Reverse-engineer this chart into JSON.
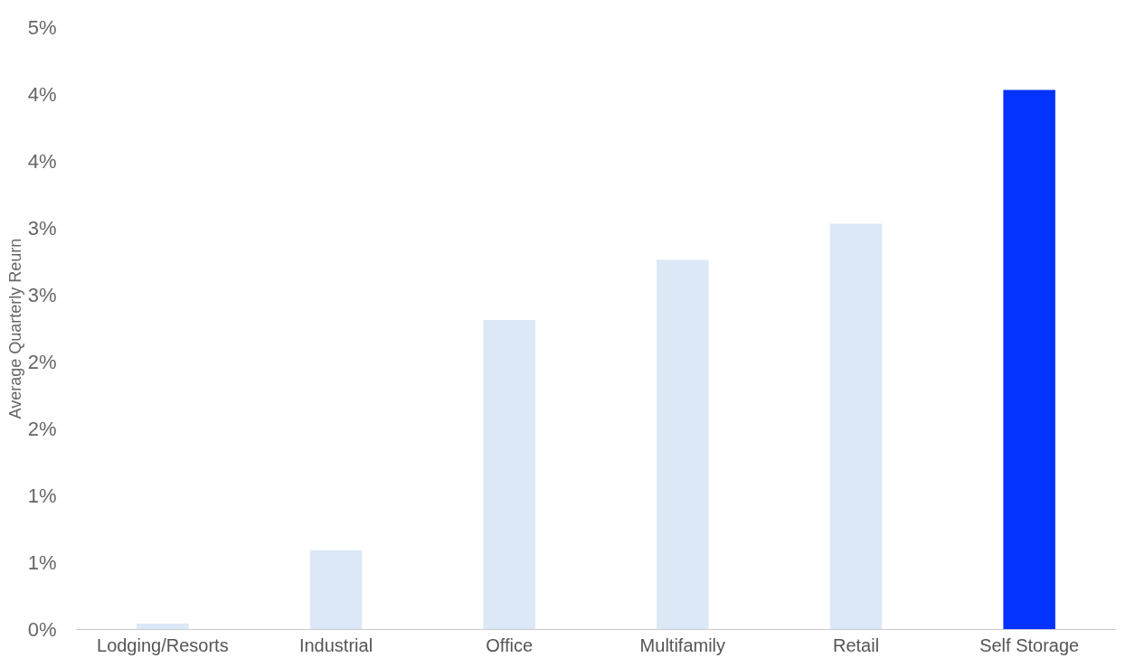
{
  "chart_data": {
    "type": "bar",
    "ylabel": "Average Quarterly Reurn",
    "categories": [
      "Lodging/Resorts",
      "Industrial",
      "Office",
      "Multifamily",
      "Retail",
      "Self Storage"
    ],
    "values": [
      0.04,
      0.59,
      2.31,
      2.76,
      3.03,
      4.03
    ],
    "colors": [
      "#dce8f6",
      "#dce8f6",
      "#dce8f6",
      "#dce8f6",
      "#dce8f6",
      "#0433ff"
    ],
    "ylim": [
      0,
      4.5
    ],
    "yticks": [
      {
        "value": 0,
        "label": "0%"
      },
      {
        "value": 0.5,
        "label": "1%"
      },
      {
        "value": 1,
        "label": "1%"
      },
      {
        "value": 1.5,
        "label": "2%"
      },
      {
        "value": 2,
        "label": "2%"
      },
      {
        "value": 2.5,
        "label": "3%"
      },
      {
        "value": 3,
        "label": "3%"
      },
      {
        "value": 3.5,
        "label": "4%"
      },
      {
        "value": 4,
        "label": "4%"
      },
      {
        "value": 4.5,
        "label": "5%"
      }
    ],
    "grid": false,
    "legend": false
  }
}
